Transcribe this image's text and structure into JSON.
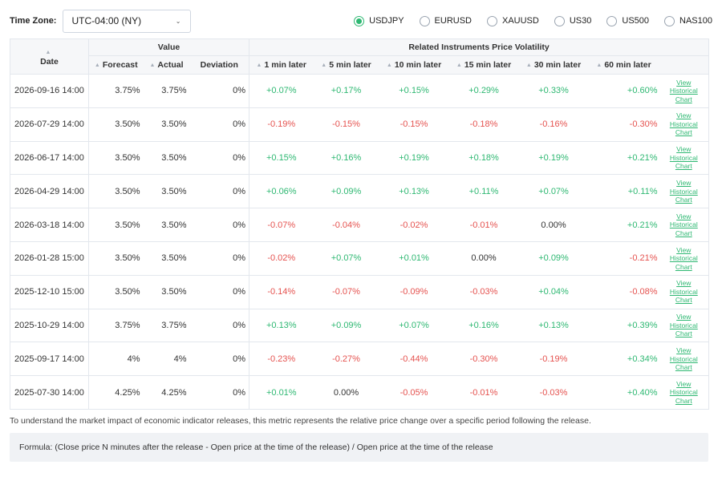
{
  "timezone": {
    "label": "Time Zone:",
    "value": "UTC-04:00 (NY)"
  },
  "instruments": [
    {
      "label": "USDJPY",
      "selected": true
    },
    {
      "label": "EURUSD",
      "selected": false
    },
    {
      "label": "XAUUSD",
      "selected": false
    },
    {
      "label": "US30",
      "selected": false
    },
    {
      "label": "US500",
      "selected": false
    },
    {
      "label": "NAS100",
      "selected": false
    }
  ],
  "table": {
    "date_header": "Date",
    "value_header": "Value",
    "volatility_header": "Related Instruments Price Volatility",
    "value_columns": [
      "Forecast",
      "Actual",
      "Deviation"
    ],
    "volatility_columns": [
      "1 min later",
      "5 min later",
      "10 min later",
      "15 min later",
      "30 min later",
      "60 min later"
    ],
    "link_label": "View Historical Chart",
    "rows": [
      {
        "date": "2026-09-16 14:00",
        "forecast": "3.75%",
        "actual": "3.75%",
        "deviation": "0%",
        "vol": [
          "+0.07%",
          "+0.17%",
          "+0.15%",
          "+0.29%",
          "+0.33%",
          "+0.60%"
        ]
      },
      {
        "date": "2026-07-29 14:00",
        "forecast": "3.50%",
        "actual": "3.50%",
        "deviation": "0%",
        "vol": [
          "-0.19%",
          "-0.15%",
          "-0.15%",
          "-0.18%",
          "-0.16%",
          "-0.30%"
        ]
      },
      {
        "date": "2026-06-17 14:00",
        "forecast": "3.50%",
        "actual": "3.50%",
        "deviation": "0%",
        "vol": [
          "+0.15%",
          "+0.16%",
          "+0.19%",
          "+0.18%",
          "+0.19%",
          "+0.21%"
        ]
      },
      {
        "date": "2026-04-29 14:00",
        "forecast": "3.50%",
        "actual": "3.50%",
        "deviation": "0%",
        "vol": [
          "+0.06%",
          "+0.09%",
          "+0.13%",
          "+0.11%",
          "+0.07%",
          "+0.11%"
        ]
      },
      {
        "date": "2026-03-18 14:00",
        "forecast": "3.50%",
        "actual": "3.50%",
        "deviation": "0%",
        "vol": [
          "-0.07%",
          "-0.04%",
          "-0.02%",
          "-0.01%",
          "0.00%",
          "+0.21%"
        ]
      },
      {
        "date": "2026-01-28 15:00",
        "forecast": "3.50%",
        "actual": "3.50%",
        "deviation": "0%",
        "vol": [
          "-0.02%",
          "+0.07%",
          "+0.01%",
          "0.00%",
          "+0.09%",
          "-0.21%"
        ]
      },
      {
        "date": "2025-12-10 15:00",
        "forecast": "3.50%",
        "actual": "3.50%",
        "deviation": "0%",
        "vol": [
          "-0.14%",
          "-0.07%",
          "-0.09%",
          "-0.03%",
          "+0.04%",
          "-0.08%"
        ]
      },
      {
        "date": "2025-10-29 14:00",
        "forecast": "3.75%",
        "actual": "3.75%",
        "deviation": "0%",
        "vol": [
          "+0.13%",
          "+0.09%",
          "+0.07%",
          "+0.16%",
          "+0.13%",
          "+0.39%"
        ]
      },
      {
        "date": "2025-09-17 14:00",
        "forecast": "4%",
        "actual": "4%",
        "deviation": "0%",
        "vol": [
          "-0.23%",
          "-0.27%",
          "-0.44%",
          "-0.30%",
          "-0.19%",
          "+0.34%"
        ]
      },
      {
        "date": "2025-07-30 14:00",
        "forecast": "4.25%",
        "actual": "4.25%",
        "deviation": "0%",
        "vol": [
          "+0.01%",
          "0.00%",
          "-0.05%",
          "-0.01%",
          "-0.03%",
          "+0.40%"
        ]
      }
    ]
  },
  "note": "To understand the market impact of economic indicator releases, this metric represents the relative price change over a specific period following the release.",
  "formula": "Formula: (Close price N minutes after the release - Open price at the time of the release) / Open price at the time of the release",
  "colors": {
    "positive": "#2eb872",
    "negative": "#e5524f",
    "link": "#2eb872",
    "header_bg": "#f6f7f9"
  },
  "icons": {
    "sort": "sort-icon",
    "dropdown": "chevron-down-icon"
  }
}
